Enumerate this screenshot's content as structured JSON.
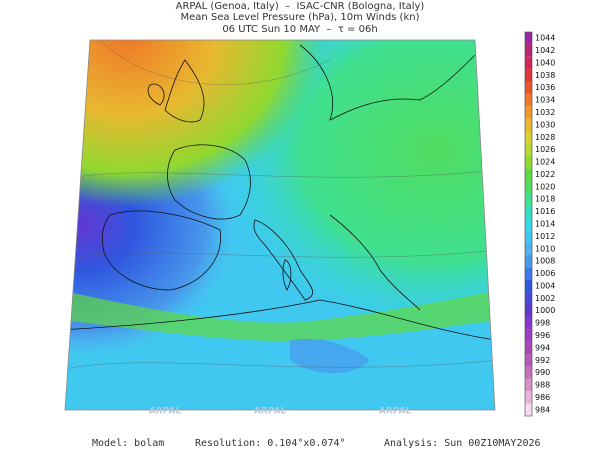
{
  "header": {
    "title": "ARPAL (Genoa, Italy)  –  ISAC-CNR (Bologna, Italy)",
    "subtitle": "Mean Sea Level Pressure (hPa), 10m Winds (kn)",
    "time": "06 UTC Sun 10 MAY  –  τ = 06h"
  },
  "colorbar": {
    "levels": [
      984,
      986,
      988,
      990,
      992,
      994,
      996,
      998,
      1000,
      1002,
      1004,
      1006,
      1008,
      1010,
      1012,
      1014,
      1016,
      1018,
      1020,
      1022,
      1024,
      1026,
      1028,
      1030,
      1032,
      1034,
      1036,
      1038,
      1040,
      1042,
      1044
    ],
    "colors": [
      "#f4dcea",
      "#e8b4d8",
      "#d890c8",
      "#c870c0",
      "#b858b8",
      "#a848b8",
      "#9840c0",
      "#8838c8",
      "#6038d0",
      "#4848d8",
      "#3058e0",
      "#3a78e8",
      "#4898ec",
      "#50b0f0",
      "#40c8f0",
      "#30d8e8",
      "#30e0c0",
      "#40e090",
      "#50dc60",
      "#60d840",
      "#90d830",
      "#b8d830",
      "#d8d030",
      "#e8b830",
      "#f09828",
      "#f07828",
      "#e85828",
      "#e03838",
      "#d02858",
      "#b82878",
      "#9828a0"
    ]
  },
  "watermark": "ARPAL",
  "footer": {
    "model": "Model: bolam",
    "resolution": "Resolution: 0.104°x0.074°",
    "analysis": "Analysis: Sun 00Z10MAY2026"
  }
}
